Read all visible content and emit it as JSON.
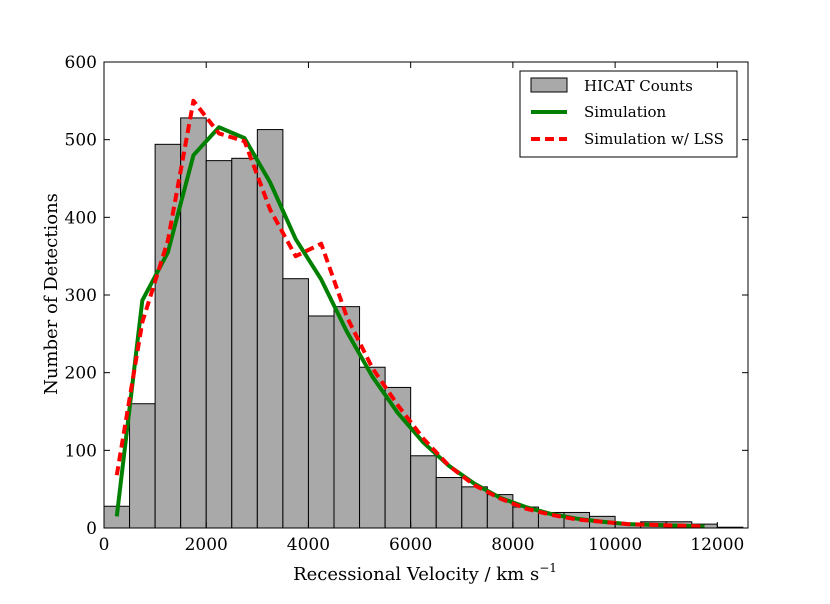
{
  "chart_data": {
    "type": "bar",
    "title": "",
    "xlabel": "Recessional Velocity / km s",
    "xlabel_superscript": "−1",
    "ylabel": "Number of Detections",
    "xlim": [
      0,
      12600
    ],
    "ylim": [
      0,
      600
    ],
    "xticks": [
      0,
      2000,
      4000,
      6000,
      8000,
      10000,
      12000
    ],
    "yticks": [
      0,
      100,
      200,
      300,
      400,
      500,
      600
    ],
    "legend_placement": "top-right",
    "grid": false,
    "histogram": {
      "name": "HICAT Counts",
      "color": "#a9a9a9",
      "edge_color": "#000000",
      "bin_width": 500,
      "bin_starts": [
        0,
        500,
        1000,
        1500,
        2000,
        2500,
        3000,
        3500,
        4000,
        4500,
        5000,
        5500,
        6000,
        6500,
        7000,
        7500,
        8000,
        8500,
        9000,
        9500,
        10000,
        10500,
        11000,
        11500,
        12000
      ],
      "counts": [
        28,
        160,
        494,
        528,
        473,
        476,
        513,
        321,
        273,
        285,
        207,
        181,
        93,
        65,
        53,
        43,
        27,
        20,
        20,
        15,
        6,
        8,
        8,
        5,
        1
      ]
    },
    "series": [
      {
        "name": "Simulation",
        "color": "#008000",
        "style": "solid",
        "x": [
          250,
          750,
          1250,
          1750,
          2250,
          2750,
          3250,
          3750,
          4250,
          4750,
          5250,
          5750,
          6250,
          6750,
          7250,
          7750,
          8250,
          8750,
          9250,
          9750,
          10250,
          10750,
          11250,
          11750
        ],
        "y": [
          15,
          293,
          355,
          480,
          516,
          502,
          445,
          372,
          320,
          253,
          195,
          148,
          110,
          80,
          57,
          39,
          27,
          18,
          12,
          8,
          5,
          4,
          3,
          2
        ]
      },
      {
        "name": "Simulation w/ LSS",
        "color": "#ff0000",
        "style": "dashed",
        "x": [
          250,
          750,
          1250,
          1750,
          2250,
          2750,
          3250,
          3750,
          4250,
          4750,
          5250,
          5750,
          6250,
          6750,
          7250,
          7750,
          8250,
          8750,
          9250,
          9750,
          10250,
          10750,
          11250,
          11750
        ],
        "y": [
          68,
          265,
          370,
          550,
          508,
          498,
          410,
          350,
          366,
          272,
          206,
          158,
          115,
          80,
          55,
          38,
          25,
          17,
          11,
          8,
          5,
          4,
          3,
          2
        ]
      }
    ]
  }
}
